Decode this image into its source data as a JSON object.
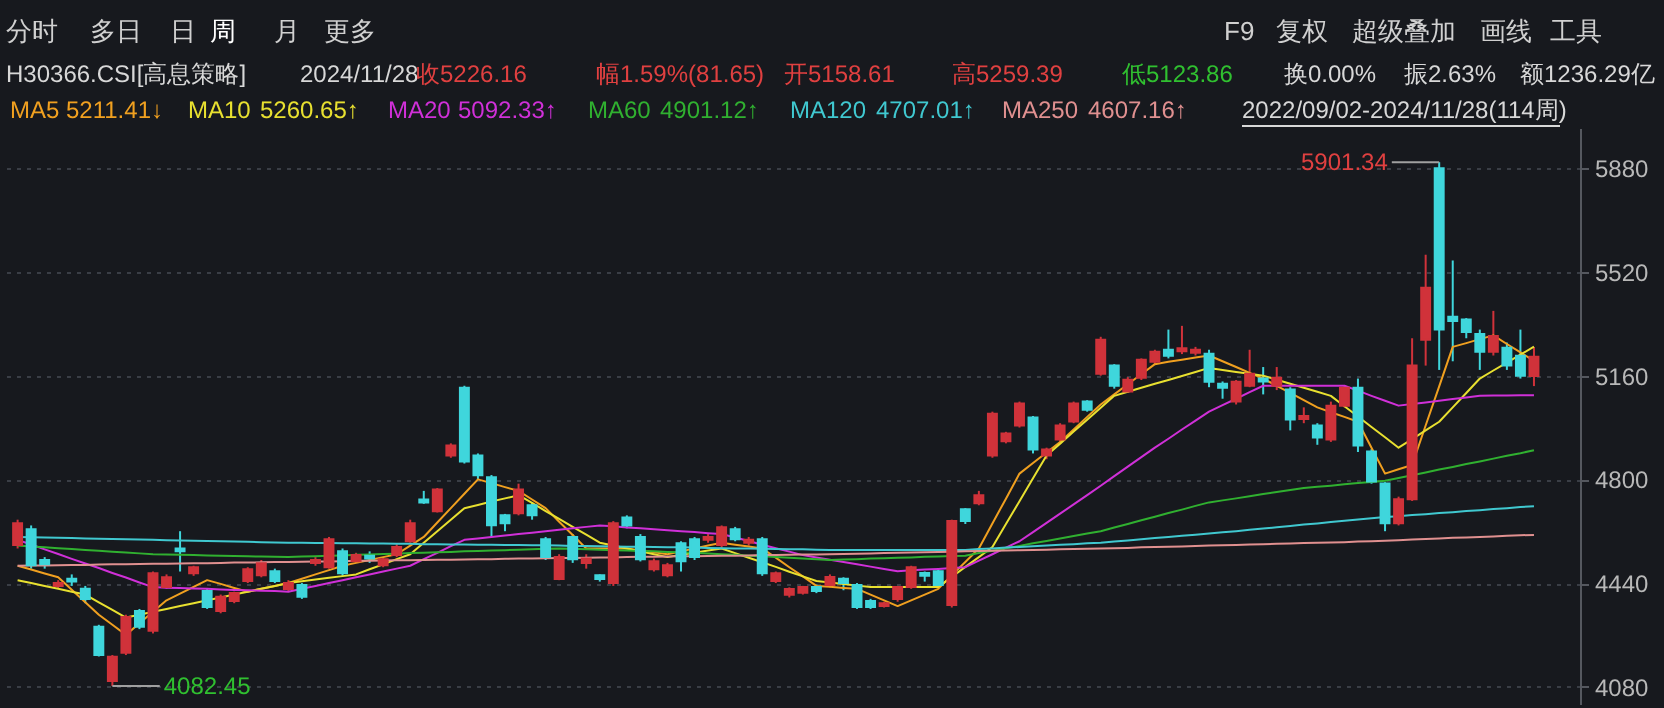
{
  "chart_data": {
    "type": "candlestick",
    "title": "H30366.CSI[高息策略]",
    "annotations": [
      "分时",
      "多日",
      "日",
      "周",
      "月",
      "更多",
      "F9",
      "复权",
      "超级叠加",
      "画线",
      "工具",
      "2024/11/28",
      "收5226.16",
      "幅1.59%(81.65)",
      "开5158.61",
      "高5259.39",
      "低5123.86",
      "换0.00%",
      "振2.63%",
      "额1236.29亿",
      "5211.41↓",
      "5260.65↑",
      "5092.33↑",
      "4901.12↑",
      "4707.01↑",
      "4607.16↑",
      "2022/09/02-2024/11/28(114周)",
      "5901.34",
      "4082.45"
    ],
    "categories": [
      null,
      null,
      null,
      null,
      null,
      null,
      null,
      null,
      null,
      null,
      null,
      null,
      null,
      null,
      null,
      null,
      null,
      null,
      null,
      null,
      null,
      null,
      null,
      null,
      null,
      null,
      null,
      null,
      null,
      null,
      null,
      null,
      null,
      null,
      null,
      null,
      null,
      null,
      null,
      null,
      null,
      null,
      null,
      null,
      null,
      null,
      null,
      null,
      null,
      null,
      null,
      null,
      null,
      null,
      null,
      null,
      null,
      null,
      null,
      null,
      null,
      null,
      null,
      null,
      null,
      null,
      null,
      null,
      null,
      null,
      null,
      null,
      null,
      null,
      null,
      null,
      null,
      null,
      null,
      null,
      null,
      null,
      null,
      null,
      null,
      null,
      null,
      null,
      null,
      null,
      null,
      null,
      null,
      null,
      null,
      null,
      null,
      null,
      null,
      null,
      null,
      null,
      null,
      null,
      null,
      null,
      null,
      null,
      null,
      null,
      null,
      null,
      null
    ],
    "ohlc": [
      [
        4572,
        4660,
        4560,
        4648
      ],
      [
        4627,
        4640,
        4490,
        4502
      ],
      [
        4520,
        4530,
        4490,
        4505
      ],
      [
        4430,
        4450,
        4420,
        4440
      ],
      [
        4455,
        4470,
        4430,
        4445
      ],
      [
        4420,
        4430,
        4370,
        4385
      ],
      [
        4288,
        4295,
        4185,
        4190
      ],
      [
        4100,
        4190,
        4082.45,
        4184
      ],
      [
        4198,
        4330,
        4190,
        4322
      ],
      [
        4343,
        4350,
        4280,
        4288
      ],
      [
        4274,
        4480,
        4265,
        4474
      ],
      [
        4426,
        4470,
        4420,
        4460
      ],
      [
        4560,
        4620,
        4480,
        4550
      ],
      [
        4474,
        4500,
        4465,
        4495
      ],
      [
        4412,
        4420,
        4350,
        4357
      ],
      [
        4343,
        4400,
        4335,
        4392
      ],
      [
        4378,
        4410,
        4370,
        4405
      ],
      [
        4447,
        4495,
        4440,
        4488
      ],
      [
        4467,
        4520,
        4460,
        4509
      ],
      [
        4481,
        4490,
        4440,
        4447
      ],
      [
        4419,
        4450,
        4410,
        4440
      ],
      [
        4433,
        4440,
        4385,
        4392
      ],
      [
        4510,
        4530,
        4500,
        4520
      ],
      [
        4495,
        4600,
        4490,
        4592
      ],
      [
        4550,
        4560,
        4465,
        4474
      ],
      [
        4516,
        4545,
        4510,
        4537
      ],
      [
        4535,
        4550,
        4510,
        4525
      ],
      [
        4502,
        4530,
        4495,
        4523
      ],
      [
        4537,
        4575,
        4530,
        4565
      ],
      [
        4585,
        4660,
        4580,
        4648
      ],
      [
        4730,
        4760,
        4715,
        4720
      ],
      [
        4689,
        4770,
        4685,
        4765
      ],
      [
        4883,
        4925,
        4875,
        4918
      ],
      [
        5118,
        5125,
        4855,
        4862
      ],
      [
        4883,
        4890,
        4800,
        4814
      ],
      [
        4807,
        4815,
        4600,
        4641
      ],
      [
        4675,
        4680,
        4620,
        4648
      ],
      [
        4682,
        4785,
        4675,
        4765
      ],
      [
        4710,
        4720,
        4660,
        4675
      ],
      [
        4592,
        4600,
        4520,
        4530
      ],
      [
        4454,
        4540,
        4450,
        4530
      ],
      [
        4600,
        4610,
        4510,
        4523
      ],
      [
        4510,
        4540,
        4490,
        4525
      ],
      [
        4467,
        4470,
        4445,
        4454
      ],
      [
        4440,
        4655,
        4430,
        4648
      ],
      [
        4668,
        4675,
        4630,
        4640
      ],
      [
        4600,
        4610,
        4515,
        4523
      ],
      [
        4488,
        4525,
        4480,
        4516
      ],
      [
        4467,
        4510,
        4460,
        4502
      ],
      [
        4578,
        4585,
        4480,
        4516
      ],
      [
        4592,
        4600,
        4520,
        4530
      ],
      [
        4590,
        4610,
        4580,
        4600
      ],
      [
        4572,
        4640,
        4565,
        4634
      ],
      [
        4627,
        4635,
        4585,
        4592
      ],
      [
        4580,
        4600,
        4570,
        4590
      ],
      [
        4592,
        4600,
        4465,
        4474
      ],
      [
        4447,
        4480,
        4440,
        4474
      ],
      [
        4399,
        4425,
        4390,
        4419
      ],
      [
        4406,
        4430,
        4400,
        4426
      ],
      [
        4426,
        4435,
        4405,
        4412
      ],
      [
        4433,
        4470,
        4425,
        4461
      ],
      [
        4455,
        4460,
        4415,
        4440
      ],
      [
        4433,
        4440,
        4350,
        4357
      ],
      [
        4378,
        4385,
        4350,
        4357
      ],
      [
        4360,
        4375,
        4355,
        4370
      ],
      [
        4385,
        4430,
        4375,
        4426
      ],
      [
        4426,
        4500,
        4420,
        4495
      ],
      [
        4475,
        4480,
        4445,
        4465
      ],
      [
        4481,
        4490,
        4425,
        4433
      ],
      [
        4364,
        4660,
        4355,
        4655
      ],
      [
        4696,
        4700,
        4645,
        4655
      ],
      [
        4717,
        4760,
        4710,
        4745
      ],
      [
        4883,
        5035,
        4875,
        5028
      ],
      [
        4932,
        4965,
        4925,
        4959
      ],
      [
        4987,
        5070,
        4980,
        5063
      ],
      [
        5015,
        5020,
        4890,
        4904
      ],
      [
        4883,
        4910,
        4870,
        4904
      ],
      [
        4938,
        4995,
        4930,
        4987
      ],
      [
        5001,
        5070,
        4995,
        5063
      ],
      [
        5070,
        5075,
        5035,
        5042
      ],
      [
        5167,
        5295,
        5160,
        5285
      ],
      [
        5195,
        5200,
        5115,
        5125
      ],
      [
        5105,
        5155,
        5100,
        5146
      ],
      [
        5153,
        5220,
        5145,
        5215
      ],
      [
        5208,
        5250,
        5200,
        5243
      ],
      [
        5250,
        5320,
        5220,
        5229
      ],
      [
        5245,
        5333,
        5235,
        5255
      ],
      [
        5240,
        5260,
        5230,
        5250
      ],
      [
        5236,
        5250,
        5120,
        5139
      ],
      [
        5132,
        5140,
        5080,
        5118
      ],
      [
        5070,
        5145,
        5060,
        5139
      ],
      [
        5125,
        5250,
        5120,
        5167
      ],
      [
        5150,
        5190,
        5095,
        5140
      ],
      [
        5125,
        5190,
        5110,
        5153
      ],
      [
        5112,
        5120,
        4970,
        5008
      ],
      [
        5010,
        5050,
        4995,
        5020
      ],
      [
        4987,
        4995,
        4920,
        4945
      ],
      [
        4938,
        5070,
        4930,
        5056
      ],
      [
        5056,
        5125,
        5050,
        5118
      ],
      [
        5118,
        5150,
        4895,
        4918
      ],
      [
        4897,
        4905,
        4785,
        4793
      ],
      [
        4786,
        4790,
        4620,
        4648
      ],
      [
        4648,
        4740,
        4640,
        4731
      ],
      [
        4731,
        5290,
        4725,
        5195
      ],
      [
        5285,
        5580,
        5195,
        5465
      ],
      [
        5880,
        5901.34,
        5180,
        5320
      ],
      [
        5365,
        5560,
        5210,
        5350
      ],
      [
        5355,
        5360,
        5290,
        5312
      ],
      [
        5305,
        5320,
        5180,
        5243
      ],
      [
        5243,
        5385,
        5230,
        5298
      ],
      [
        5257,
        5275,
        5180,
        5195
      ],
      [
        5229,
        5320,
        5150,
        5160
      ],
      [
        5158.61,
        5259.39,
        5123.86,
        5226.16
      ]
    ],
    "series": [
      {
        "name": "MA5",
        "type": "line",
        "color": "#f0a020",
        "values": [
          4500,
          4487,
          4473,
          4460,
          4417,
          4373,
          4330,
          4295,
          4260,
          4300,
          4340,
          4380,
          4403,
          4427,
          4450,
          4437,
          4423,
          4410,
          4420,
          4430,
          4440,
          4455,
          4470,
          4485,
          4500,
          4510,
          4520,
          4530,
          4540,
          4570,
          4600,
          4650,
          4700,
          4750,
          4800,
          4787,
          4773,
          4760,
          4730,
          4700,
          4653,
          4607,
          4560,
          4560,
          4560,
          4560,
          4553,
          4547,
          4540,
          4550,
          4560,
          4570,
          4580,
          4573,
          4567,
          4560,
          4528,
          4495,
          4463,
          4430,
          4427,
          4423,
          4420,
          4400,
          4380,
          4360,
          4380,
          4400,
          4420,
          4467,
          4513,
          4560,
          4647,
          4733,
          4820,
          4857,
          4893,
          4930,
          4973,
          5017,
          5060,
          5095,
          5130,
          5165,
          5200,
          5208,
          5215,
          5223,
          5230,
          5210,
          5190,
          5170,
          5150,
          5125,
          5100,
          5075,
          5050,
          5033,
          5017,
          5000,
          4910,
          4820,
          4835,
          4850,
          4987,
          5123,
          5260,
          5273,
          5287,
          5300,
          5270,
          5241,
          5211.41
        ]
      },
      {
        "name": "MA10",
        "type": "line",
        "color": "#e8e030",
        "values": [
          4450,
          4440,
          4430,
          4420,
          4410,
          4400,
          4373,
          4347,
          4320,
          4330,
          4340,
          4350,
          4360,
          4370,
          4380,
          4390,
          4400,
          4410,
          4420,
          4430,
          4440,
          4446,
          4452,
          4458,
          4464,
          4470,
          4488,
          4505,
          4523,
          4540,
          4580,
          4620,
          4660,
          4700,
          4711,
          4723,
          4734,
          4745,
          4718,
          4690,
          4663,
          4635,
          4608,
          4580,
          4570,
          4560,
          4550,
          4540,
          4530,
          4538,
          4545,
          4553,
          4560,
          4544,
          4528,
          4512,
          4496,
          4479,
          4463,
          4447,
          4442,
          4437,
          4431,
          4426,
          4426,
          4426,
          4426,
          4426,
          4426,
          4461,
          4496,
          4530,
          4565,
          4645,
          4724,
          4804,
          4883,
          4924,
          4966,
          5007,
          5049,
          5090,
          5104,
          5118,
          5132,
          5145,
          5159,
          5173,
          5187,
          5180,
          5173,
          5167,
          5160,
          5146,
          5132,
          5118,
          5104,
          5090,
          5054,
          5018,
          4982,
          4946,
          4910,
          4940,
          4970,
          5000,
          5050,
          5100,
          5150,
          5178,
          5205,
          5233,
          5260.65
        ]
      },
      {
        "name": "MA20",
        "type": "line",
        "color": "#d030d8",
        "values": [
          4590,
          4574,
          4557,
          4541,
          4524,
          4508,
          4492,
          4475,
          4459,
          4442,
          4426,
          4424,
          4423,
          4421,
          4420,
          4418,
          4416,
          4415,
          4413,
          4412,
          4410,
          4420,
          4430,
          4440,
          4450,
          4460,
          4470,
          4480,
          4490,
          4500,
          4523,
          4545,
          4568,
          4590,
          4595,
          4600,
          4605,
          4610,
          4615,
          4620,
          4625,
          4630,
          4635,
          4640,
          4637,
          4633,
          4630,
          4627,
          4623,
          4620,
          4617,
          4613,
          4610,
          4598,
          4586,
          4573,
          4561,
          4549,
          4537,
          4529,
          4521,
          4513,
          4505,
          4497,
          4489,
          4481,
          4484,
          4487,
          4489,
          4492,
          4495,
          4518,
          4540,
          4563,
          4585,
          4617,
          4649,
          4681,
          4713,
          4745,
          4778,
          4811,
          4844,
          4877,
          4910,
          4941,
          4973,
          5004,
          5035,
          5058,
          5080,
          5103,
          5125,
          5125,
          5125,
          5125,
          5125,
          5125,
          5125,
          5108,
          5090,
          5073,
          5056,
          5062,
          5067,
          5073,
          5079,
          5084,
          5090,
          5091,
          5091,
          5092,
          5092.33
        ]
      },
      {
        "name": "MA60",
        "type": "line",
        "color": "#30b030",
        "values": [
          4570,
          4567,
          4564,
          4561,
          4558,
          4555,
          4552,
          4549,
          4546,
          4543,
          4540,
          4539,
          4538,
          4537,
          4536,
          4535,
          4534,
          4533,
          4532,
          4531,
          4530,
          4532,
          4533,
          4535,
          4536,
          4538,
          4539,
          4541,
          4542,
          4544,
          4545,
          4547,
          4548,
          4550,
          4551,
          4553,
          4554,
          4556,
          4557,
          4559,
          4560,
          4559,
          4557,
          4556,
          4554,
          4553,
          4551,
          4550,
          4548,
          4547,
          4545,
          4543,
          4540,
          4538,
          4535,
          4533,
          4530,
          4528,
          4525,
          4523,
          4520,
          4522,
          4523,
          4525,
          4526,
          4528,
          4529,
          4531,
          4532,
          4534,
          4535,
          4544,
          4552,
          4561,
          4569,
          4578,
          4586,
          4595,
          4603,
          4612,
          4620,
          4633,
          4645,
          4658,
          4670,
          4683,
          4695,
          4708,
          4720,
          4727,
          4734,
          4741,
          4749,
          4756,
          4763,
          4770,
          4774,
          4778,
          4783,
          4787,
          4791,
          4795,
          4805,
          4814,
          4824,
          4834,
          4843,
          4853,
          4862,
          4872,
          4882,
          4891,
          4901.12
        ]
      },
      {
        "name": "MA120",
        "type": "line",
        "color": "#40c8d0",
        "values": [
          4600,
          4599,
          4598,
          4597,
          4596,
          4595,
          4594,
          4593,
          4592,
          4591,
          4590,
          4589,
          4588,
          4587,
          4586,
          4585,
          4584,
          4583,
          4582,
          4581,
          4580,
          4580,
          4579,
          4579,
          4578,
          4578,
          4577,
          4577,
          4576,
          4576,
          4575,
          4575,
          4574,
          4574,
          4573,
          4573,
          4572,
          4572,
          4571,
          4571,
          4570,
          4569,
          4569,
          4568,
          4567,
          4566,
          4566,
          4565,
          4564,
          4564,
          4563,
          4562,
          4561,
          4560,
          4560,
          4559,
          4558,
          4557,
          4557,
          4556,
          4555,
          4555,
          4555,
          4555,
          4555,
          4555,
          4555,
          4555,
          4555,
          4555,
          4555,
          4558,
          4560,
          4563,
          4565,
          4568,
          4570,
          4573,
          4575,
          4578,
          4580,
          4584,
          4588,
          4592,
          4596,
          4600,
          4604,
          4608,
          4612,
          4616,
          4620,
          4625,
          4629,
          4634,
          4638,
          4643,
          4647,
          4652,
          4656,
          4661,
          4665,
          4669,
          4672,
          4676,
          4679,
          4683,
          4686,
          4690,
          4693,
          4697,
          4700,
          4704,
          4707.01
        ]
      },
      {
        "name": "MA250",
        "type": "line",
        "color": "#e09090",
        "values": [
          4500,
          4501,
          4501,
          4502,
          4503,
          4503,
          4504,
          4505,
          4505,
          4506,
          4507,
          4507,
          4508,
          4509,
          4509,
          4510,
          4511,
          4511,
          4512,
          4513,
          4513,
          4514,
          4515,
          4515,
          4516,
          4517,
          4517,
          4518,
          4519,
          4519,
          4520,
          4521,
          4521,
          4522,
          4523,
          4523,
          4524,
          4525,
          4525,
          4526,
          4527,
          4527,
          4528,
          4529,
          4529,
          4530,
          4531,
          4531,
          4532,
          4533,
          4533,
          4534,
          4535,
          4535,
          4536,
          4537,
          4537,
          4538,
          4539,
          4539,
          4540,
          4541,
          4542,
          4543,
          4544,
          4545,
          4546,
          4547,
          4548,
          4549,
          4550,
          4551,
          4552,
          4553,
          4554,
          4555,
          4556,
          4557,
          4558,
          4559,
          4560,
          4561,
          4562,
          4564,
          4565,
          4566,
          4567,
          4569,
          4570,
          4571,
          4572,
          4574,
          4575,
          4576,
          4577,
          4579,
          4580,
          4581,
          4582,
          4584,
          4585,
          4587,
          4589,
          4591,
          4593,
          4595,
          4597,
          4598,
          4600,
          4602,
          4604,
          4606,
          4607.16
        ]
      }
    ],
    "ylim": [
      4020,
      6020
    ],
    "yticks": [
      4080,
      4440,
      4800,
      5160,
      5520,
      5880
    ],
    "tick_labels": "y",
    "grid": "y"
  }
}
